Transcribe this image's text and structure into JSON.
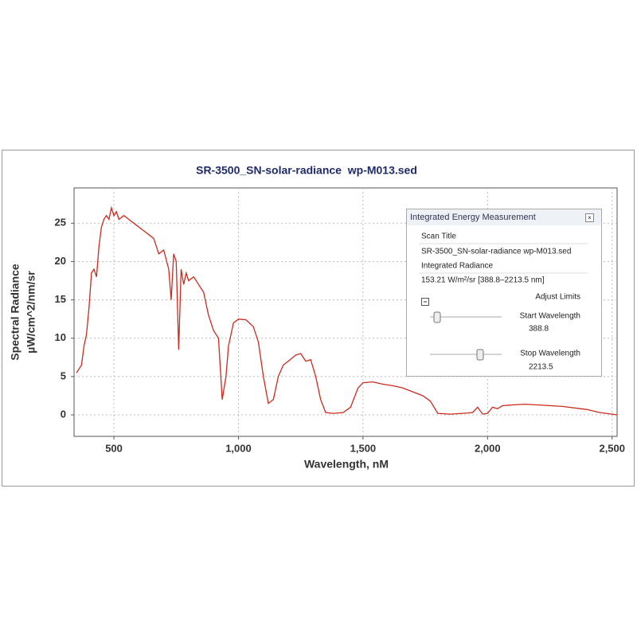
{
  "chart_data": {
    "type": "line",
    "title": "SR-3500_SN-solar-radiance  wp-M013.sed",
    "xlabel": "Wavelength, nM",
    "ylabel": [
      "Spectral Radiance",
      "µW/cm^2/nm/sr"
    ],
    "color": "#cc2a1e",
    "grid": true,
    "xlim": [
      340,
      2520
    ],
    "ylim": [
      -2.8,
      29.6
    ],
    "xticks": [
      {
        "value": 500,
        "label": "500"
      },
      {
        "value": 1000,
        "label": "1,000"
      },
      {
        "value": 1500,
        "label": "1,500"
      },
      {
        "value": 2000,
        "label": "2,000"
      },
      {
        "value": 2500,
        "label": "2,500"
      }
    ],
    "yticks": [
      0,
      5,
      10,
      15,
      20,
      25
    ],
    "x": [
      350,
      370,
      380,
      390,
      400,
      410,
      420,
      430,
      440,
      450,
      460,
      470,
      480,
      490,
      500,
      510,
      520,
      540,
      560,
      580,
      600,
      620,
      640,
      660,
      680,
      700,
      720,
      730,
      740,
      750,
      760,
      770,
      780,
      790,
      800,
      820,
      840,
      860,
      880,
      900,
      920,
      935,
      950,
      960,
      980,
      1000,
      1030,
      1060,
      1080,
      1100,
      1120,
      1140,
      1160,
      1180,
      1200,
      1230,
      1250,
      1270,
      1290,
      1310,
      1330,
      1350,
      1380,
      1420,
      1450,
      1480,
      1500,
      1540,
      1580,
      1620,
      1660,
      1700,
      1740,
      1770,
      1800,
      1850,
      1900,
      1940,
      1960,
      1980,
      2000,
      2020,
      2040,
      2060,
      2100,
      2150,
      2200,
      2300,
      2400,
      2450,
      2500,
      2520
    ],
    "values": [
      5.5,
      6.5,
      9,
      10.5,
      14,
      18.5,
      19,
      18,
      22,
      24.5,
      25.5,
      26,
      25.5,
      27,
      26,
      26.5,
      25.5,
      26,
      25.5,
      25,
      24.5,
      24,
      23.5,
      23,
      21,
      21.5,
      19,
      15,
      21,
      20,
      8.5,
      19,
      17,
      18.5,
      17.5,
      18,
      17,
      16,
      13,
      11,
      10,
      2,
      5,
      9,
      12,
      12.5,
      12.4,
      11.5,
      9.5,
      5,
      1.5,
      2,
      5,
      6.5,
      7,
      7.8,
      8,
      7,
      7.2,
      5,
      2,
      0.3,
      0.2,
      0.3,
      1,
      3.5,
      4.2,
      4.3,
      4,
      3.8,
      3.5,
      3,
      2.5,
      1.8,
      0.2,
      0.1,
      0.2,
      0.3,
      1,
      0.1,
      0.2,
      1,
      0.8,
      1.2,
      1.3,
      1.4,
      1.3,
      1.1,
      0.7,
      0.3,
      0.1,
      0
    ]
  },
  "panel": {
    "title": "Integrated Energy Measurement",
    "scan_title_label": "Scan Title",
    "scan_title": "SR-3500_SN-solar-radiance wp-M013.sed",
    "radiance_label": "Integrated Radiance",
    "radiance": "153.21 W/m²/sr [388.8–2213.5 nm]",
    "adjust": "Adjust Limits",
    "start_label": "Start Wavelength",
    "start": "388.8",
    "stop_label": "Stop Wavelength",
    "stop": "2213.5"
  }
}
